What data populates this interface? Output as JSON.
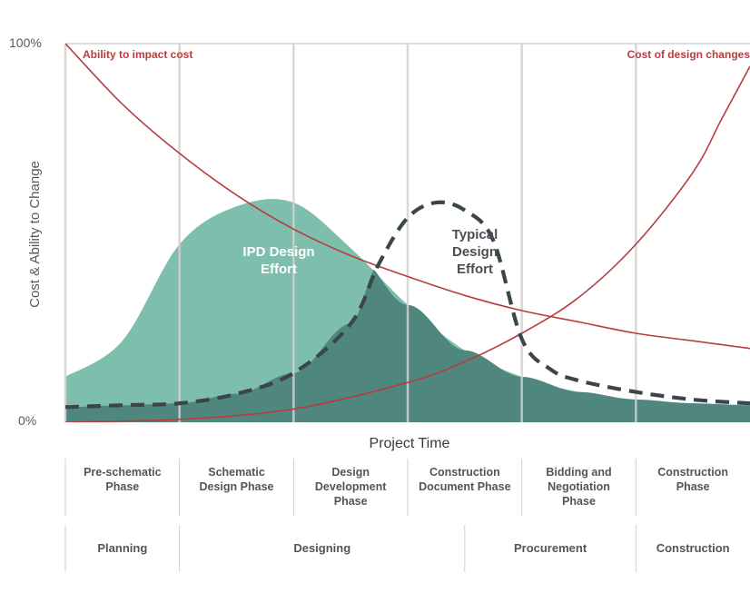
{
  "chart_data": {
    "type": "area",
    "title": "",
    "xlabel": "Project Time",
    "ylabel": "Cost & Ability to Change",
    "ylim": [
      0,
      100
    ],
    "y_tick_labels": [
      "100%",
      "0%"
    ],
    "grid": true,
    "phases": [
      "Pre-schematic Phase",
      "Schematic Design Phase",
      "Design Development Phase",
      "Construction Document Phase",
      "Bidding and Negotiation Phase",
      "Construction Phase"
    ],
    "stages": [
      "Planning",
      "Designing",
      "Procurement",
      "Construction"
    ],
    "annotations": {
      "ipd": "IPD Design Effort",
      "typical": "Typical Design Effort"
    },
    "colors": {
      "ipd_fill": "#7dbfac",
      "dark_fill": "#4f867d",
      "cost_line": "#b83c3e",
      "typical_line": "#3b454c",
      "grid": "#d2d2d2",
      "axis_text": "#595959",
      "ipd_label": "#ffffff",
      "typical_label": "#4a4f55"
    },
    "series": [
      {
        "name": "Ability to impact cost",
        "x": [
          0,
          0.5,
          1,
          1.5,
          2,
          2.5,
          3,
          3.5,
          4,
          4.5,
          5,
          5.5,
          6
        ],
        "values": [
          100,
          84,
          71,
          60,
          51,
          44,
          38.5,
          33.5,
          29.5,
          26.5,
          23.5,
          21.5,
          19.5
        ]
      },
      {
        "name": "Cost of design changes",
        "x": [
          0,
          1,
          2,
          3,
          3.5,
          4,
          4.5,
          5,
          5.5,
          5.75,
          6
        ],
        "values": [
          0,
          0.8,
          3.5,
          10.5,
          16,
          23.5,
          33,
          47,
          66,
          80,
          94
        ]
      },
      {
        "name": "IPD Design Effort",
        "x": [
          0,
          0.5,
          1,
          1.5,
          2,
          2.5,
          3,
          3.5,
          4,
          4.5,
          5,
          5.5,
          6
        ],
        "values": [
          12,
          21.5,
          47,
          57,
          58,
          46,
          31,
          19,
          12,
          8,
          6,
          5,
          4.5
        ]
      },
      {
        "name": "Typical Design Effort",
        "x": [
          0,
          0.5,
          1,
          1.5,
          2,
          2.5,
          2.75,
          3,
          3.25,
          3.5,
          3.75,
          4,
          4.25,
          4.5,
          5,
          5.5,
          6
        ],
        "values": [
          4,
          4.5,
          5,
          7.5,
          13,
          26,
          42,
          54,
          58,
          56,
          48,
          22,
          14,
          11,
          8,
          6,
          5
        ]
      }
    ]
  }
}
